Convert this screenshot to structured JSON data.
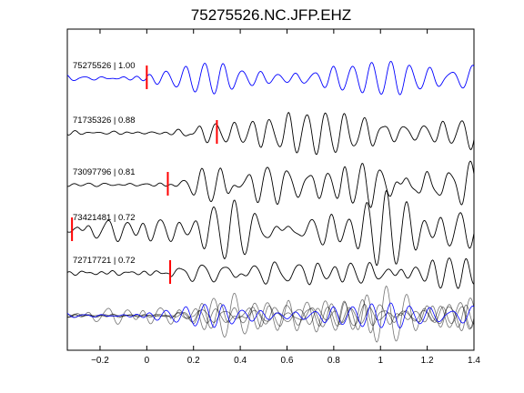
{
  "chart_data": {
    "type": "line",
    "title": "75275526.NC.JFP.EHZ",
    "xlim": [
      -0.34,
      1.4
    ],
    "xticks": [
      -0.2,
      0,
      0.2,
      0.4,
      0.6,
      0.8,
      1,
      1.2,
      1.4
    ],
    "xtick_labels": [
      "−0.2",
      "0",
      "0.2",
      "0.4",
      "0.6",
      "0.8",
      "1",
      "1.2",
      "1.4"
    ],
    "grid": false,
    "traces": [
      {
        "label": "75275526 | 1.00",
        "event_id": "75275526",
        "correlation": 1.0,
        "pick_time": 0.0,
        "color": "#0000ff",
        "seed": 1,
        "amp": 0.9,
        "onset": 0.0
      },
      {
        "label": "71735326 | 0.88",
        "event_id": "71735326",
        "correlation": 0.88,
        "pick_time": 0.3,
        "color": "#000000",
        "seed": 2,
        "amp": 1.0,
        "onset": 0.05
      },
      {
        "label": "73097796 | 0.81",
        "event_id": "73097796",
        "correlation": 0.81,
        "pick_time": 0.09,
        "color": "#000000",
        "seed": 3,
        "amp": 1.0,
        "onset": 0.08
      },
      {
        "label": "73421481 | 0.72",
        "event_id": "73421481",
        "correlation": 0.72,
        "pick_time": -0.32,
        "color": "#000000",
        "seed": 4,
        "amp": 1.0,
        "onset": -0.3
      },
      {
        "label": "72717721 | 0.72",
        "event_id": "72717721",
        "correlation": 0.72,
        "pick_time": 0.1,
        "color": "#000000",
        "seed": 5,
        "amp": 1.0,
        "onset": 0.1
      }
    ],
    "stack": {
      "colors": [
        "#000000",
        "#000000",
        "#000000",
        "#000000",
        "#0000ff"
      ]
    },
    "pick_color": "#ff0000"
  }
}
